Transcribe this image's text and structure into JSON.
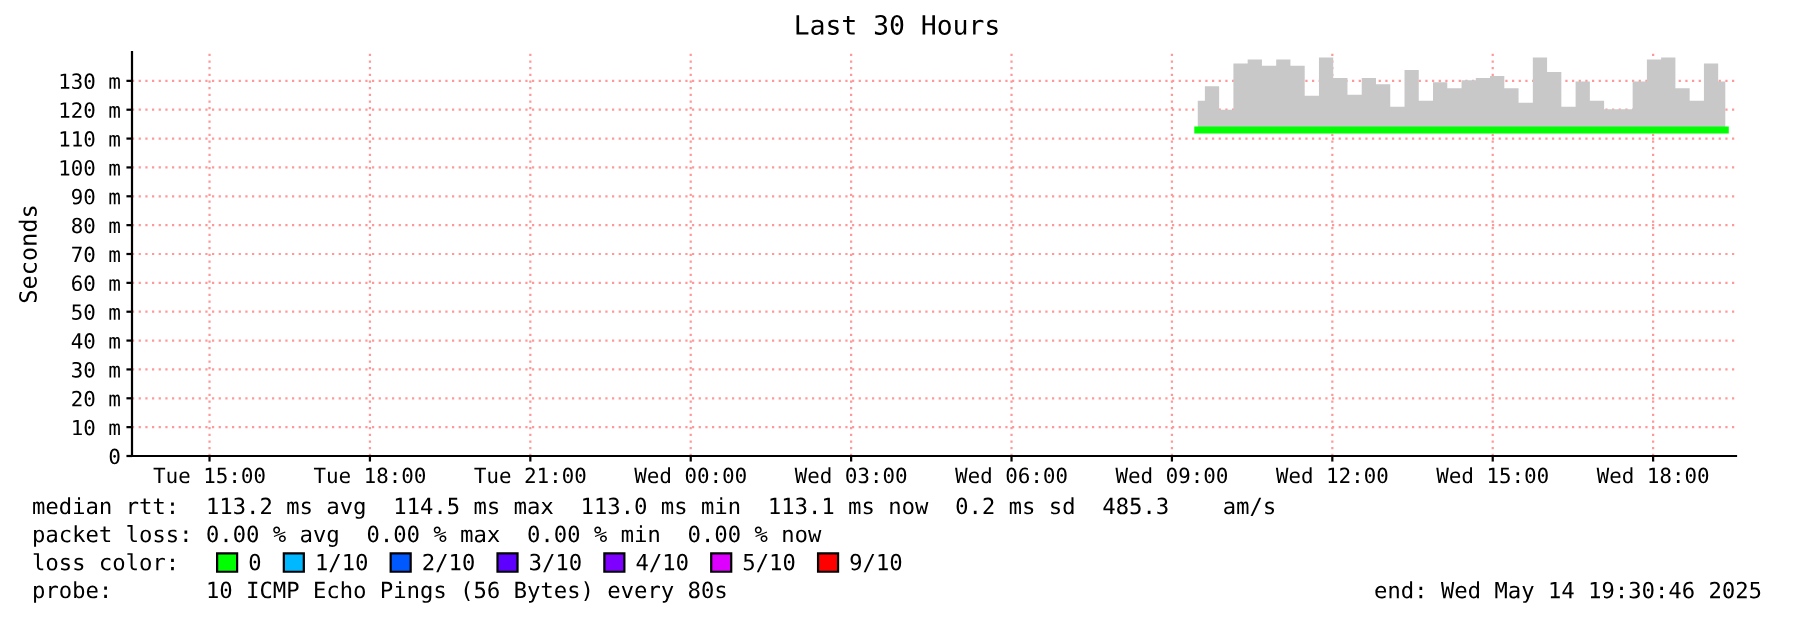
{
  "chart_data": {
    "type": "step",
    "title": "Last 30 Hours",
    "ylabel": "Seconds",
    "x": [
      "2025-05-14T09:29",
      "2025-05-14T09:45",
      "2025-05-14T10:01",
      "2025-05-14T10:17",
      "2025-05-14T10:33",
      "2025-05-14T10:49",
      "2025-05-14T11:05",
      "2025-05-14T11:21",
      "2025-05-14T11:37",
      "2025-05-14T11:53",
      "2025-05-14T12:09",
      "2025-05-14T12:25",
      "2025-05-14T12:41",
      "2025-05-14T12:57",
      "2025-05-14T13:13",
      "2025-05-14T13:29",
      "2025-05-14T13:45",
      "2025-05-14T14:01",
      "2025-05-14T14:17",
      "2025-05-14T14:33",
      "2025-05-14T14:49",
      "2025-05-14T15:05",
      "2025-05-14T15:21",
      "2025-05-14T15:37",
      "2025-05-14T15:53",
      "2025-05-14T16:09",
      "2025-05-14T16:25",
      "2025-05-14T16:41",
      "2025-05-14T16:57",
      "2025-05-14T17:13",
      "2025-05-14T17:29",
      "2025-05-14T17:45",
      "2025-05-14T18:01",
      "2025-05-14T18:17",
      "2025-05-14T18:33",
      "2025-05-14T18:49",
      "2025-05-14T19:05",
      "2025-05-14T19:21"
    ],
    "series": [
      {
        "name": "0",
        "color": "#00ff00",
        "values": [
          113,
          113,
          113,
          113,
          113,
          113,
          113,
          113,
          113,
          113,
          113,
          113,
          113,
          113,
          113,
          113,
          113,
          113,
          113,
          113,
          113,
          113,
          113,
          113,
          113,
          113,
          113,
          113,
          113,
          113,
          113,
          113,
          113,
          113,
          113,
          113,
          113,
          113
        ],
        "lower": [
          112,
          112,
          112,
          112,
          112,
          112,
          112,
          112,
          112,
          112,
          112,
          112,
          112,
          112,
          112,
          112,
          112,
          112,
          112,
          112,
          112,
          112,
          112,
          112,
          112,
          112,
          112,
          112,
          112,
          112,
          112,
          112,
          112,
          112,
          112,
          112,
          112,
          112
        ],
        "upper": [
          123.1,
          128.1,
          120,
          136,
          137.4,
          135.2,
          137.4,
          135.2,
          124.8,
          138.1,
          131,
          125.2,
          131,
          128.8,
          121,
          133.8,
          123.1,
          129.5,
          127.4,
          130.2,
          131,
          131.7,
          127.4,
          122.4,
          138.1,
          133.1,
          121,
          129.8,
          123.1,
          120.2,
          120.2,
          129.8,
          137.4,
          138.1,
          127.4,
          123.1,
          136,
          129.8
        ]
      },
      {
        "name": "1/10",
        "color": "#00b8ff",
        "values": [
          null,
          null,
          null,
          null,
          null,
          null,
          null,
          null,
          null,
          null,
          null,
          null,
          null,
          null,
          null,
          null,
          null,
          null,
          null,
          null,
          null,
          null,
          null,
          null,
          null,
          null,
          null,
          null,
          null,
          null,
          null,
          null,
          null,
          null,
          null,
          null,
          null,
          null
        ]
      },
      {
        "name": "2/10",
        "color": "#0059ff",
        "values": [
          null,
          null,
          null,
          null,
          null,
          null,
          null,
          null,
          null,
          null,
          null,
          null,
          null,
          null,
          null,
          null,
          null,
          null,
          null,
          null,
          null,
          null,
          null,
          null,
          null,
          null,
          null,
          null,
          null,
          null,
          null,
          null,
          null,
          null,
          null,
          null,
          null,
          null
        ]
      },
      {
        "name": "3/10",
        "color": "#5e00ff",
        "values": [
          null,
          null,
          null,
          null,
          null,
          null,
          null,
          null,
          null,
          null,
          null,
          null,
          null,
          null,
          null,
          null,
          null,
          null,
          null,
          null,
          null,
          null,
          null,
          null,
          null,
          null,
          null,
          null,
          null,
          null,
          null,
          null,
          null,
          null,
          null,
          null,
          null,
          null
        ]
      },
      {
        "name": "4/10",
        "color": "#7e00ff",
        "values": [
          null,
          null,
          null,
          null,
          null,
          null,
          null,
          null,
          null,
          null,
          null,
          null,
          null,
          null,
          null,
          null,
          null,
          null,
          null,
          null,
          null,
          null,
          null,
          null,
          null,
          null,
          null,
          null,
          null,
          null,
          null,
          null,
          null,
          null,
          null,
          null,
          null,
          null
        ]
      },
      {
        "name": "5/10",
        "color": "#dd00ff",
        "values": [
          null,
          null,
          null,
          null,
          null,
          null,
          null,
          null,
          null,
          null,
          null,
          null,
          null,
          null,
          null,
          null,
          null,
          null,
          null,
          null,
          null,
          null,
          null,
          null,
          null,
          null,
          null,
          null,
          null,
          null,
          null,
          null,
          null,
          null,
          null,
          null,
          null,
          null
        ]
      },
      {
        "name": "9/10",
        "color": "#ff0000",
        "values": [
          null,
          null,
          null,
          null,
          null,
          null,
          null,
          null,
          null,
          null,
          null,
          null,
          null,
          null,
          null,
          null,
          null,
          null,
          null,
          null,
          null,
          null,
          null,
          null,
          null,
          null,
          null,
          null,
          null,
          null,
          null,
          null,
          null,
          null,
          null,
          null,
          null,
          null
        ]
      }
    ],
    "xlim": [
      "2025-05-13T13:33",
      "2025-05-14T19:33"
    ],
    "xticks": [
      {
        "value": "2025-05-13T15:00",
        "label": "Tue 15:00"
      },
      {
        "value": "2025-05-13T18:00",
        "label": "Tue 18:00"
      },
      {
        "value": "2025-05-13T21:00",
        "label": "Tue 21:00"
      },
      {
        "value": "2025-05-14T00:00",
        "label": "Wed 00:00"
      },
      {
        "value": "2025-05-14T03:00",
        "label": "Wed 03:00"
      },
      {
        "value": "2025-05-14T06:00",
        "label": "Wed 06:00"
      },
      {
        "value": "2025-05-14T09:00",
        "label": "Wed 09:00"
      },
      {
        "value": "2025-05-14T12:00",
        "label": "Wed 12:00"
      },
      {
        "value": "2025-05-14T15:00",
        "label": "Wed 15:00"
      },
      {
        "value": "2025-05-14T18:00",
        "label": "Wed 18:00"
      }
    ],
    "ylim": [
      0,
      140
    ],
    "yticks": [
      0,
      {
        "value": 10,
        "label": "10 m"
      },
      {
        "value": 20,
        "label": "20 m"
      },
      {
        "value": 30,
        "label": "30 m"
      },
      {
        "value": 40,
        "label": "40 m"
      },
      {
        "value": 50,
        "label": "50 m"
      },
      {
        "value": 60,
        "label": "60 m"
      },
      {
        "value": 70,
        "label": "70 m"
      },
      {
        "value": 80,
        "label": "80 m"
      },
      {
        "value": 90,
        "label": "90 m"
      },
      {
        "value": 100,
        "label": "100 m"
      },
      {
        "value": 110,
        "label": "110 m"
      },
      {
        "value": 120,
        "label": "120 m"
      },
      {
        "value": 130,
        "label": "130 m"
      }
    ],
    "grid": true,
    "legend": "bottom",
    "legend_title": "loss color:",
    "annotations": [
      "median rtt:  113.2 ms avg  114.5 ms max  113.0 ms min  113.1 ms now  0.2 ms sd  485.3    am/s",
      "packet loss: 0.00 % avg  0.00 % max  0.00 % min  0.00 % now",
      "probe:       10 ICMP Echo Pings (56 Bytes) every 80s",
      "end: Wed May 14 19:30:46 2025"
    ]
  }
}
